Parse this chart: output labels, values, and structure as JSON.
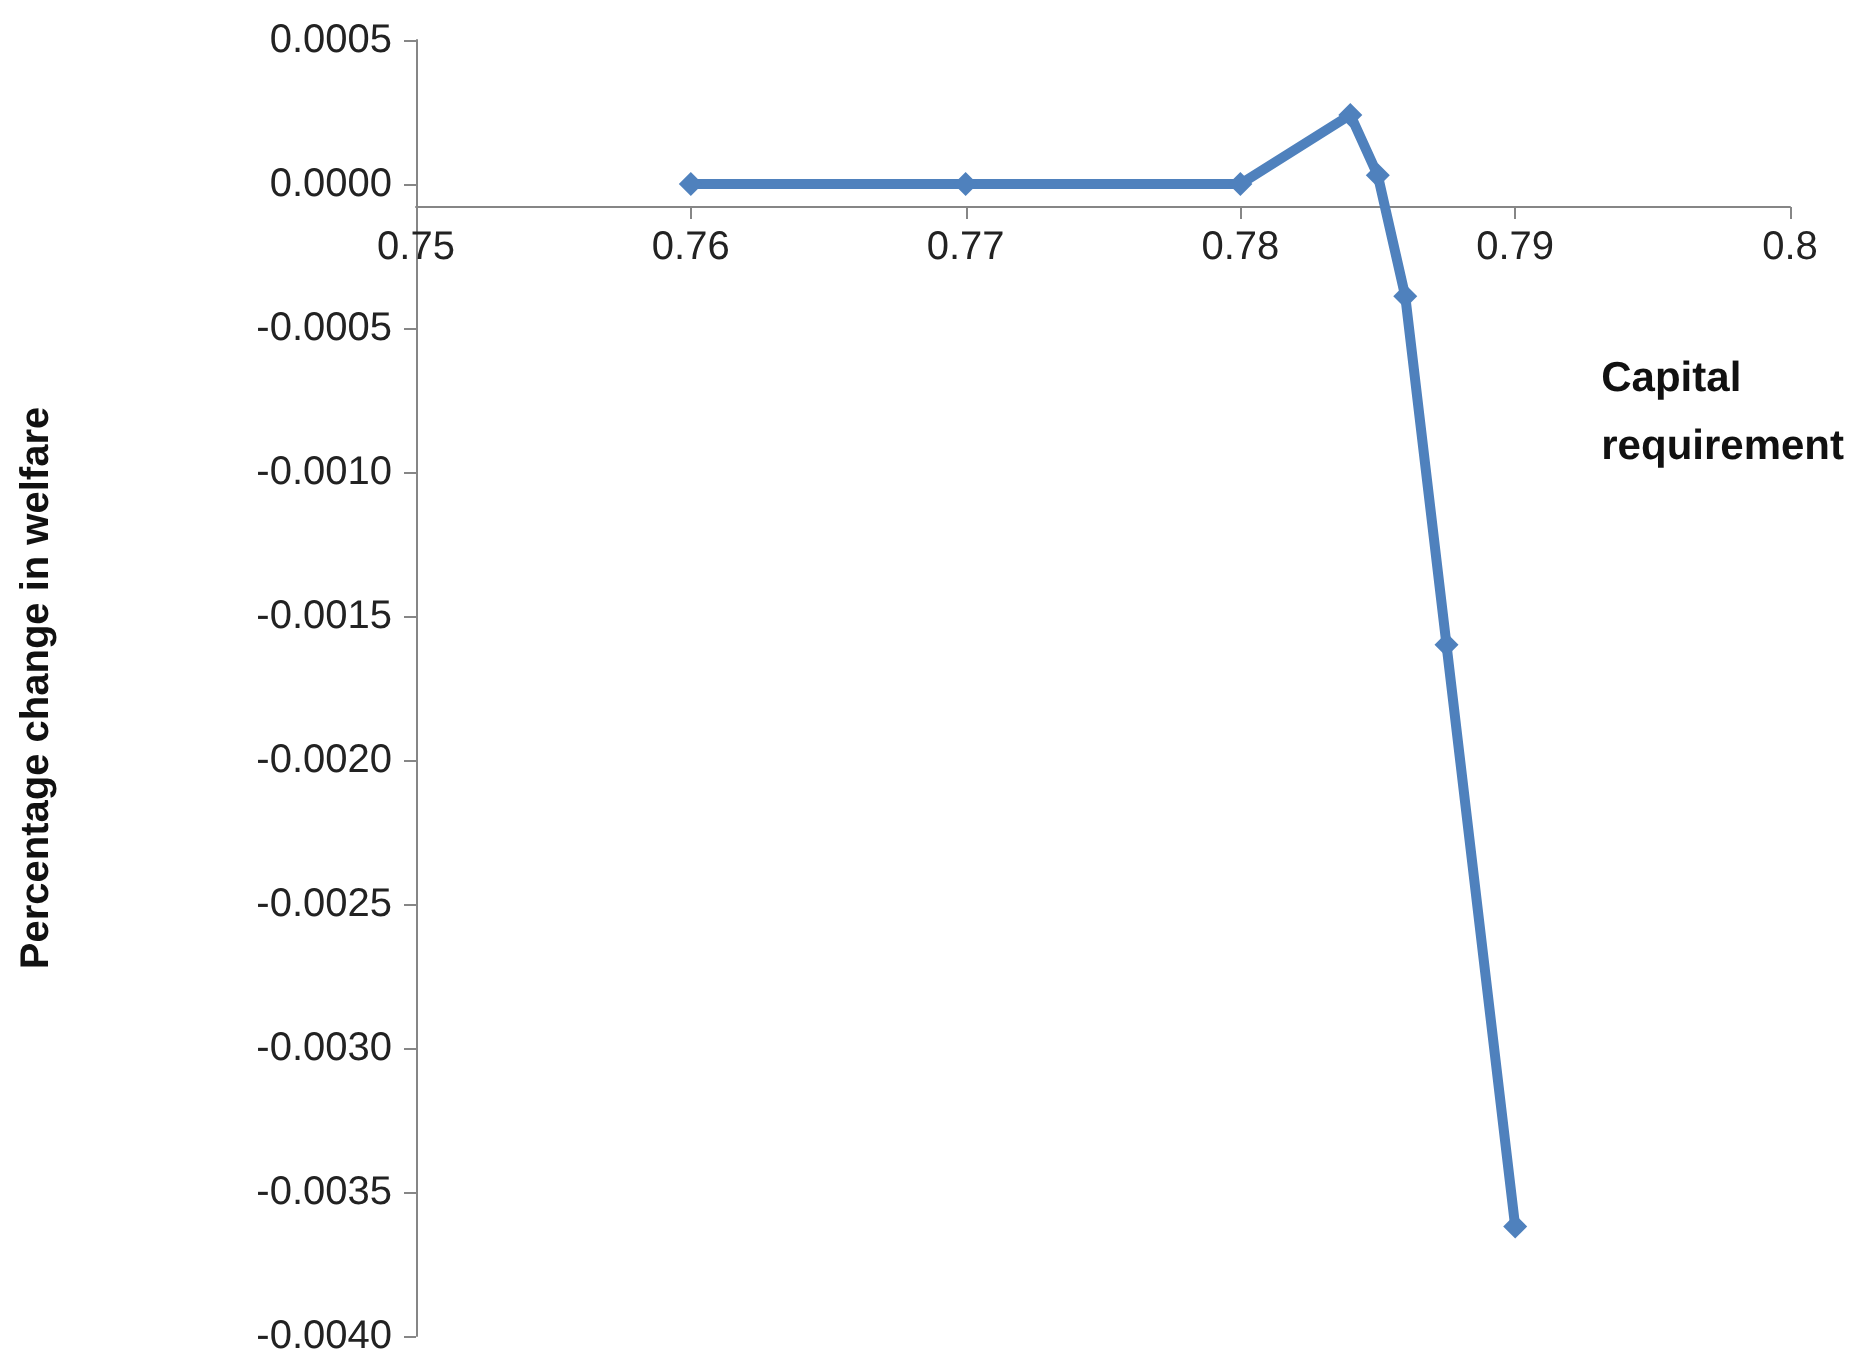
{
  "chart_data": {
    "type": "line",
    "xlabel": "Capital requirement",
    "ylabel": "Percentage change in welfare",
    "series": [
      {
        "color": "#4f81bd",
        "x": [
          0.76,
          0.77,
          0.78,
          0.784,
          0.785,
          0.786,
          0.7875,
          0.79
        ],
        "values": [
          0,
          0,
          0,
          0.00024,
          3e-05,
          -0.00039,
          -0.0016,
          -0.00362
        ]
      }
    ],
    "xlim": [
      0.75,
      0.8
    ],
    "xticks": [
      0.75,
      0.76,
      0.77,
      0.78,
      0.79,
      0.8
    ],
    "ylim": [
      -0.004,
      0.0005
    ],
    "yticks": [
      0.0005,
      {
        "value": 0,
        "label": "0.0000"
      },
      {
        "value": -0.0005,
        "label": "-0.0005"
      },
      {
        "value": -0.001,
        "label": "-0.0010"
      },
      {
        "value": -0.0015,
        "label": "-0.0015"
      },
      {
        "value": -0.002,
        "label": "-0.0020"
      },
      {
        "value": -0.0025,
        "label": "-0.0025"
      },
      {
        "value": -0.003,
        "label": "-0.0030"
      },
      {
        "value": -0.0035,
        "label": "-0.0035"
      },
      {
        "value": -0.004,
        "label": "-0.0040"
      }
    ],
    "marker": "diamond",
    "grid": false
  }
}
